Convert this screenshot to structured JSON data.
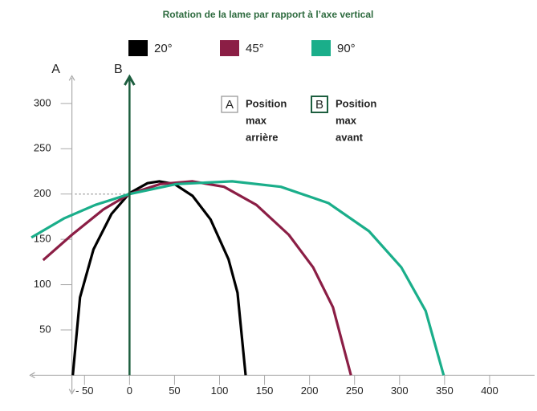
{
  "chart_data": {
    "type": "line",
    "title": "Rotation de la lame par rapport à l’axe vertical",
    "xlim": [
      -110,
      450
    ],
    "ylim": [
      -20,
      330
    ],
    "xticks": [
      {
        "value": -50,
        "label": "- 50"
      },
      0,
      50,
      100,
      150,
      200,
      250,
      300,
      350,
      400
    ],
    "yticks": [
      50,
      100,
      150,
      200,
      250,
      300
    ],
    "reference_lines": [
      {
        "label": "A",
        "x": -64,
        "color": "#aaaaaa"
      },
      {
        "label": "B",
        "x": 0,
        "color": "#1d5e3f"
      }
    ],
    "annotations": [
      {
        "letter": "A",
        "lines": [
          "Position",
          "max",
          "arrière"
        ],
        "color": "#999999"
      },
      {
        "letter": "B",
        "lines": [
          "Position",
          "max",
          "avant"
        ],
        "color": "#1d5e3f"
      }
    ],
    "series": [
      {
        "name": "20°",
        "color": "#000000",
        "x": [
          -63,
          -55,
          -40,
          -20,
          0,
          20,
          33,
          50,
          70,
          90,
          110,
          120,
          129
        ],
        "values": [
          0,
          86,
          139,
          178,
          201,
          212,
          214,
          211,
          198,
          172,
          128,
          91,
          0
        ]
      },
      {
        "name": "45°",
        "color": "#8b1e45",
        "x": [
          -96,
          -64,
          -29,
          0,
          34,
          70,
          105,
          141,
          177,
          204,
          226,
          246
        ],
        "values": [
          127,
          155,
          183,
          200,
          211,
          214,
          208,
          188,
          155,
          119,
          75,
          0
        ]
      },
      {
        "name": "90°",
        "color": "#1aae8a",
        "x": [
          -109,
          -73,
          -38,
          0,
          52,
          114,
          168,
          221,
          266,
          302,
          329,
          349
        ],
        "values": [
          152,
          173,
          188,
          200,
          211,
          214,
          208,
          190,
          159,
          119,
          71,
          0
        ]
      }
    ]
  }
}
